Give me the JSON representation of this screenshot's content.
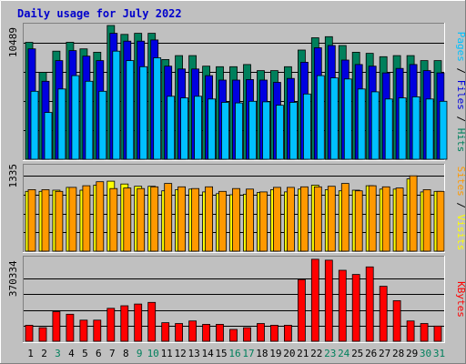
{
  "chart_data": {
    "type": "bar",
    "title": "Daily usage for July 2022",
    "categories": [
      "1",
      "2",
      "3",
      "4",
      "5",
      "6",
      "7",
      "8",
      "9",
      "10",
      "11",
      "12",
      "13",
      "14",
      "15",
      "16",
      "17",
      "18",
      "19",
      "20",
      "21",
      "22",
      "23",
      "24",
      "25",
      "26",
      "27",
      "28",
      "29",
      "30",
      "31"
    ],
    "weekend_days": [
      3,
      9,
      10,
      16,
      17,
      23,
      24,
      30,
      31
    ],
    "colors": {
      "hits": "#00805c",
      "files": "#0000e0",
      "pages": "#00c0ff",
      "visits": "#ffff00",
      "sites": "#ff9900",
      "kbytes": "#ff0000",
      "weekday": "#000000",
      "weekend": "#00805c",
      "title": "#0000cc"
    },
    "panels": [
      {
        "name": "usage",
        "ytick": "10489",
        "ymax": 12000,
        "labels": [
          {
            "text": "Pages",
            "color": "#00c0ff"
          },
          {
            "text": " / ",
            "color": "#000000"
          },
          {
            "text": "Files",
            "color": "#0000e0"
          },
          {
            "text": " / ",
            "color": "#000000"
          },
          {
            "text": "Hits",
            "color": "#00805c"
          }
        ],
        "series": [
          {
            "name": "Hits",
            "color": "#00805c",
            "values": [
              10489,
              7800,
              9700,
              10500,
              9900,
              9600,
              12000,
              11200,
              11300,
              11300,
              8950,
              9300,
              9300,
              8350,
              8300,
              8300,
              8500,
              7950,
              7950,
              8300,
              9800,
              10900,
              11000,
              10200,
              9600,
              9500,
              9200,
              9300,
              9300,
              8850,
              8850
            ]
          },
          {
            "name": "Files",
            "color": "#0000e0",
            "values": [
              9900,
              7000,
              8850,
              9750,
              9250,
              8850,
              11300,
              10600,
              10600,
              10700,
              8350,
              8100,
              8100,
              7500,
              7100,
              7100,
              7150,
              7100,
              6900,
              7250,
              8700,
              10000,
              10200,
              8900,
              8500,
              8350,
              7750,
              8150,
              8500,
              7950,
              7750
            ]
          },
          {
            "name": "Pages",
            "color": "#00c0ff",
            "values": [
              6100,
              4200,
              6300,
              7500,
              7000,
              6100,
              9700,
              8850,
              8300,
              9100,
              5650,
              5500,
              5650,
              5400,
              5100,
              5050,
              5200,
              5150,
              4850,
              5100,
              5850,
              7500,
              7300,
              7200,
              6300,
              6050,
              5400,
              5500,
              5600,
              5400,
              5200
            ]
          }
        ]
      },
      {
        "name": "visits",
        "ytick": "1335",
        "ymax": 1500,
        "labels": [
          {
            "text": "Sites",
            "color": "#ff9900"
          },
          {
            "text": " / ",
            "color": "#000000"
          },
          {
            "text": "Visits",
            "color": "#ffff00"
          }
        ],
        "series": [
          {
            "name": "Visits",
            "color": "#ffff00",
            "values": [
              1060,
              1060,
              1080,
              1130,
              1080,
              1170,
              1240,
              1190,
              1150,
              1150,
              1070,
              1090,
              1100,
              1050,
              1020,
              1000,
              1010,
              1040,
              1090,
              1050,
              1100,
              1170,
              1090,
              1070,
              1080,
              1160,
              1100,
              1100,
              1280,
              1050,
              1060
            ]
          },
          {
            "name": "Sites",
            "color": "#ff9900",
            "values": [
              1090,
              1090,
              1060,
              1130,
              1160,
              1230,
              1110,
              1120,
              1110,
              1140,
              1200,
              1140,
              1110,
              1140,
              1060,
              1110,
              1100,
              1050,
              1130,
              1130,
              1140,
              1140,
              1150,
              1200,
              1070,
              1160,
              1140,
              1120,
              1335,
              1090,
              1060
            ]
          }
        ]
      },
      {
        "name": "kbytes",
        "ytick": "370334",
        "ymax": 490000,
        "labels": [
          {
            "text": "KBytes",
            "color": "#ff0000"
          }
        ],
        "series": [
          {
            "name": "KBytes",
            "color": "#ff0000",
            "values": [
              95000,
              80000,
              175000,
              160000,
              125000,
              125000,
              195000,
              210000,
              220000,
              230000,
              110000,
              105000,
              120000,
              100000,
              100000,
              70000,
              80000,
              105000,
              95000,
              95000,
              365000,
              485000,
              480000,
              420000,
              395000,
              440000,
              325000,
              240000,
              120000,
              105000,
              90000
            ]
          }
        ]
      }
    ]
  }
}
